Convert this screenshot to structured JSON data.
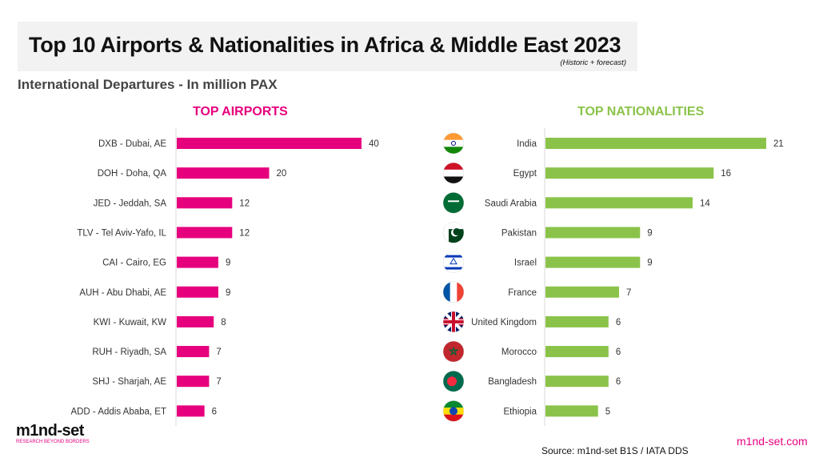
{
  "header": {
    "title": "Top 10 Airports & Nationalities in Africa & Middle East 2023",
    "note": "(Historic + forecast)",
    "subtitle": "International Departures - In million PAX"
  },
  "footer": {
    "source": "Source: m1nd-set B1S / IATA DDS",
    "site": "m1nd-set.com",
    "logo_text": "m1nd-set",
    "logo_tagline": "RESEARCH BEYOND BORDERS"
  },
  "colors": {
    "airports": "#e6007e",
    "nationalities": "#8bc34a"
  },
  "chart_data": [
    {
      "type": "bar",
      "orientation": "horizontal",
      "title": "TOP AIRPORTS",
      "categories": [
        "DXB - Dubai, AE",
        "DOH - Doha, QA",
        "JED - Jeddah, SA",
        "TLV - Tel Aviv-Yafo, IL",
        "CAI - Cairo, EG",
        "AUH - Abu Dhabi, AE",
        "KWI - Kuwait, KW",
        "RUH - Riyadh, SA",
        "SHJ - Sharjah, AE",
        "ADD - Addis Ababa, ET"
      ],
      "values": [
        40,
        20,
        12,
        12,
        9,
        9,
        8,
        7,
        7,
        6
      ],
      "data_labels": true,
      "grid": false
    },
    {
      "type": "bar",
      "orientation": "horizontal",
      "title": "TOP NATIONALITIES",
      "categories": [
        "India",
        "Egypt",
        "Saudi Arabia",
        "Pakistan",
        "Israel",
        "France",
        "United Kingdom",
        "Morocco",
        "Bangladesh",
        "Ethiopia"
      ],
      "flags": [
        "india-flag",
        "egypt-flag",
        "saudi-arabia-flag",
        "pakistan-flag",
        "israel-flag",
        "france-flag",
        "uk-flag",
        "morocco-flag",
        "bangladesh-flag",
        "ethiopia-flag"
      ],
      "values": [
        21,
        16,
        14,
        9,
        9,
        7,
        6,
        6,
        6,
        5
      ],
      "data_labels": true,
      "grid": false
    }
  ]
}
